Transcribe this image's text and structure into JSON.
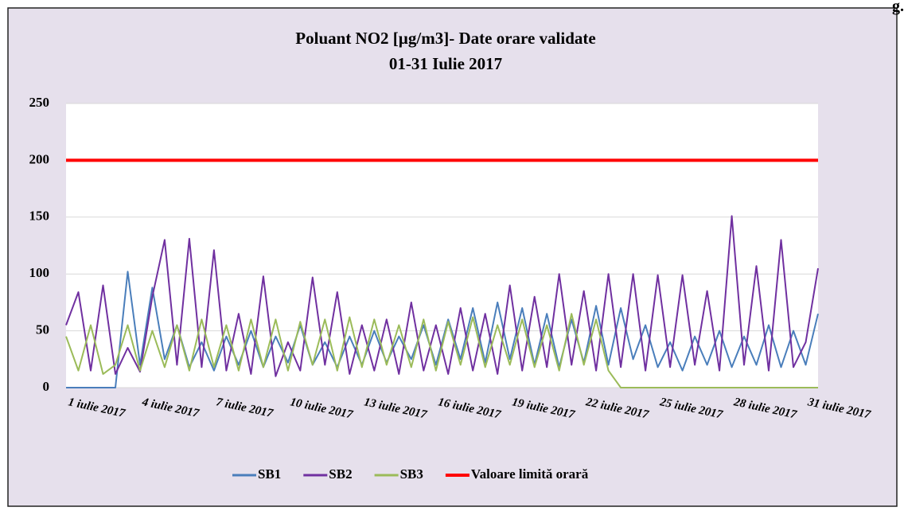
{
  "corner_text": "g.",
  "chart_data": {
    "type": "line",
    "title": "Poluant NO2 [µg/m3]- Date orare validate",
    "subtitle": "01-31 Iulie 2017",
    "categories": [
      "1 iulie 2017",
      null,
      null,
      null,
      null,
      null,
      "4 iulie 2017",
      null,
      null,
      null,
      null,
      null,
      "7 iulie 2017",
      null,
      null,
      null,
      null,
      null,
      "10 iulie 2017",
      null,
      null,
      null,
      null,
      null,
      "13 iulie 2017",
      null,
      null,
      null,
      null,
      null,
      "16 iulie 2017",
      null,
      null,
      null,
      null,
      null,
      "19 iulie 2017",
      null,
      null,
      null,
      null,
      null,
      "22 iulie 2017",
      null,
      null,
      null,
      null,
      null,
      "25 iulie 2017",
      null,
      null,
      null,
      null,
      null,
      "28 iulie 2017",
      null,
      null,
      null,
      null,
      null,
      "31 iulie 2017",
      null
    ],
    "series": [
      {
        "name": "SB1",
        "color": "#4a7ebb",
        "values": [
          0,
          0,
          0,
          0,
          0,
          102,
          20,
          88,
          25,
          55,
          18,
          40,
          15,
          45,
          20,
          50,
          18,
          45,
          22,
          55,
          20,
          40,
          18,
          45,
          20,
          50,
          22,
          45,
          25,
          55,
          20,
          60,
          25,
          70,
          22,
          75,
          25,
          70,
          20,
          65,
          18,
          60,
          22,
          72,
          20,
          70,
          25,
          55,
          18,
          40,
          15,
          45,
          20,
          50,
          18,
          45,
          20,
          55,
          18,
          50,
          20,
          65
        ]
      },
      {
        "name": "SB2",
        "color": "#7030a0",
        "values": [
          55,
          84,
          15,
          90,
          12,
          35,
          14,
          80,
          130,
          20,
          131,
          18,
          121,
          15,
          65,
          12,
          98,
          10,
          40,
          15,
          97,
          20,
          84,
          12,
          55,
          15,
          60,
          12,
          75,
          15,
          55,
          12,
          70,
          15,
          65,
          12,
          90,
          15,
          80,
          18,
          100,
          20,
          85,
          15,
          100,
          18,
          100,
          15,
          99,
          18,
          99,
          20,
          85,
          15,
          151,
          20,
          107,
          15,
          130,
          18,
          40,
          105
        ]
      },
      {
        "name": "SB3",
        "color": "#9bbb59",
        "values": [
          45,
          15,
          55,
          12,
          20,
          55,
          15,
          50,
          18,
          55,
          15,
          60,
          18,
          55,
          15,
          60,
          18,
          60,
          15,
          58,
          20,
          60,
          15,
          62,
          18,
          60,
          20,
          55,
          18,
          60,
          15,
          58,
          20,
          62,
          18,
          55,
          20,
          60,
          18,
          55,
          15,
          65,
          20,
          60,
          15,
          0,
          0,
          0,
          0,
          0,
          0,
          0,
          0,
          0,
          0,
          0,
          0,
          0,
          0,
          0,
          0,
          0
        ]
      },
      {
        "name": "Valoare limită orară",
        "color": "#ff0000",
        "values": [
          200,
          200,
          200,
          200,
          200,
          200,
          200,
          200,
          200,
          200,
          200,
          200,
          200,
          200,
          200,
          200,
          200,
          200,
          200,
          200,
          200,
          200,
          200,
          200,
          200,
          200,
          200,
          200,
          200,
          200,
          200,
          200,
          200,
          200,
          200,
          200,
          200,
          200,
          200,
          200,
          200,
          200,
          200,
          200,
          200,
          200,
          200,
          200,
          200,
          200,
          200,
          200,
          200,
          200,
          200,
          200,
          200,
          200,
          200,
          200,
          200,
          200
        ]
      }
    ],
    "ylim": [
      0,
      250
    ],
    "yticks": [
      0,
      50,
      100,
      150,
      200,
      250
    ],
    "grid": true,
    "legend": "bottom"
  }
}
